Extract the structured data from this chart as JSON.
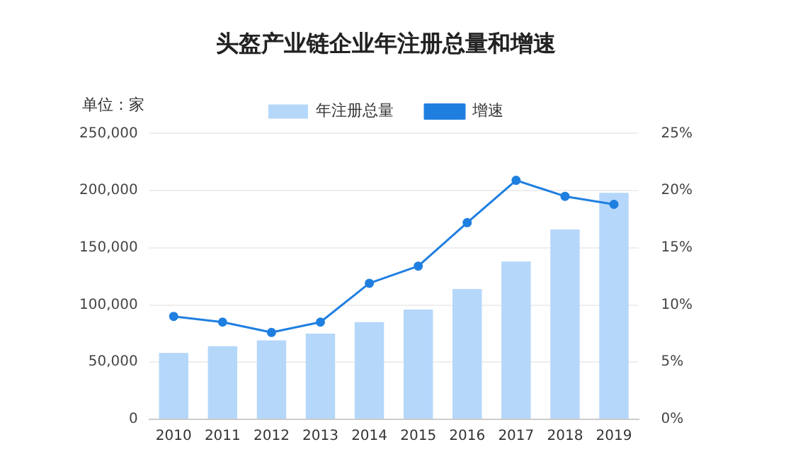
{
  "chart_data": {
    "type": "bar",
    "title": "头盔产业链企业年注册总量和增速",
    "ylabel": "单位：家",
    "categories": [
      "2010",
      "2011",
      "2012",
      "2013",
      "2014",
      "2015",
      "2016",
      "2017",
      "2018",
      "2019"
    ],
    "series": [
      {
        "name": "年注册总量",
        "color": "#b5d7fa",
        "values": [
          58000,
          64000,
          69000,
          75000,
          85000,
          96000,
          114000,
          138000,
          166000,
          198000
        ]
      },
      {
        "name": "增速",
        "type": "line",
        "axis": "y2",
        "color": "#1f7fe0",
        "values": [
          9.0,
          8.5,
          7.6,
          8.5,
          11.9,
          13.4,
          17.2,
          20.9,
          19.5,
          18.8
        ]
      }
    ],
    "ylim": [
      0,
      250000
    ],
    "yticks": [
      {
        "value": 0,
        "label": "0"
      },
      {
        "value": 50000,
        "label": "50,000"
      },
      {
        "value": 100000,
        "label": "100,000"
      },
      {
        "value": 150000,
        "label": "150,000"
      },
      {
        "value": 200000,
        "label": "200,000"
      },
      {
        "value": 250000,
        "label": "250,000"
      }
    ],
    "y2lim": [
      0,
      25
    ],
    "y2ticks": [
      {
        "value": 0,
        "label": "0%"
      },
      {
        "value": 5,
        "label": "5%"
      },
      {
        "value": 10,
        "label": "10%"
      },
      {
        "value": 15,
        "label": "15%"
      },
      {
        "value": 20,
        "label": "20%"
      },
      {
        "value": 25,
        "label": "25%"
      }
    ],
    "grid": "y",
    "legend": "top",
    "marker": "circle"
  }
}
